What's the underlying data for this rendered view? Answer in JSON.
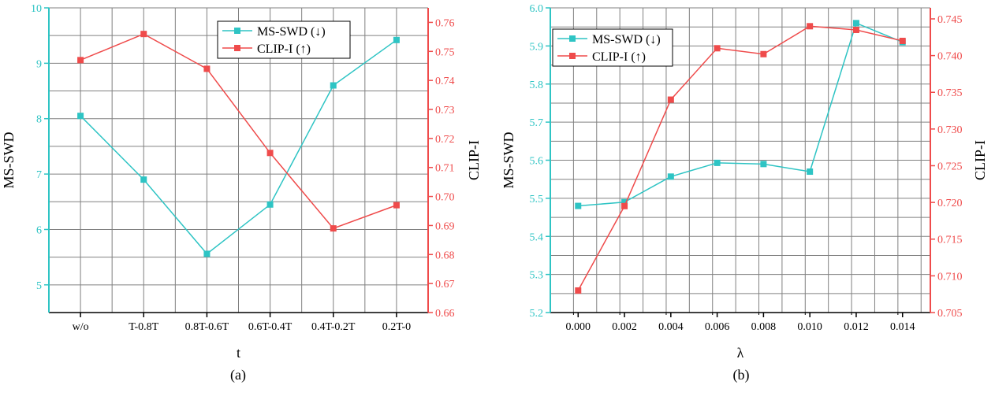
{
  "colors": {
    "left_axis": "#2ec4c4",
    "right_axis": "#ef4b4b",
    "grid": "#808080",
    "ms_swd": "#2ec4c4",
    "clip_i": "#ef4b4b"
  },
  "chart_data": [
    {
      "type": "line",
      "panel_label": "(a)",
      "xlabel": "t",
      "ylabel_left": "MS-SWD",
      "ylabel_right": "CLIP-I",
      "categories": [
        "w/o",
        "T-0.8T",
        "0.8T-0.6T",
        "0.6T-0.4T",
        "0.4T-0.2T",
        "0.2T-0"
      ],
      "ylim_left": [
        4.5,
        10
      ],
      "yticks_left": [
        "5",
        "6",
        "7",
        "8",
        "9",
        "10"
      ],
      "ylim_right": [
        0.66,
        0.765
      ],
      "yticks_right": [
        "0.66",
        "0.67",
        "0.68",
        "0.69",
        "0.70",
        "0.71",
        "0.72",
        "0.73",
        "0.74",
        "0.75",
        "0.76"
      ],
      "grid": true,
      "legend_position": "top-center",
      "series": [
        {
          "name": "MS-SWD (↓)",
          "axis": "left",
          "values": [
            8.05,
            6.9,
            5.56,
            6.45,
            8.6,
            9.42
          ]
        },
        {
          "name": "CLIP-I (↑)",
          "axis": "right",
          "values": [
            0.747,
            0.756,
            0.744,
            0.715,
            0.689,
            0.697
          ]
        }
      ]
    },
    {
      "type": "line",
      "panel_label": "(b)",
      "xlabel": "λ",
      "ylabel_left": "MS-SWD",
      "ylabel_right": "CLIP-I",
      "categories": [
        "0.000",
        "0.002",
        "0.004",
        "0.006",
        "0.008",
        "0.010",
        "0.012",
        "0.014"
      ],
      "ylim_left": [
        5.2,
        6.0
      ],
      "yticks_left": [
        "5.2",
        "5.3",
        "5.4",
        "5.5",
        "5.6",
        "5.7",
        "5.8",
        "5.9",
        "6.0"
      ],
      "ylim_right": [
        0.705,
        0.7465
      ],
      "yticks_right": [
        "0.705",
        "0.710",
        "0.715",
        "0.720",
        "0.725",
        "0.730",
        "0.735",
        "0.740",
        "0.745"
      ],
      "grid": true,
      "legend_position": "top-left",
      "series": [
        {
          "name": "MS-SWD (↓)",
          "axis": "left",
          "values": [
            5.48,
            5.49,
            5.557,
            5.593,
            5.59,
            5.57,
            5.96,
            5.91
          ]
        },
        {
          "name": "CLIP-I (↑)",
          "axis": "right",
          "values": [
            0.708,
            0.7195,
            0.734,
            0.741,
            0.7402,
            0.744,
            0.7435,
            0.742
          ]
        }
      ]
    }
  ]
}
